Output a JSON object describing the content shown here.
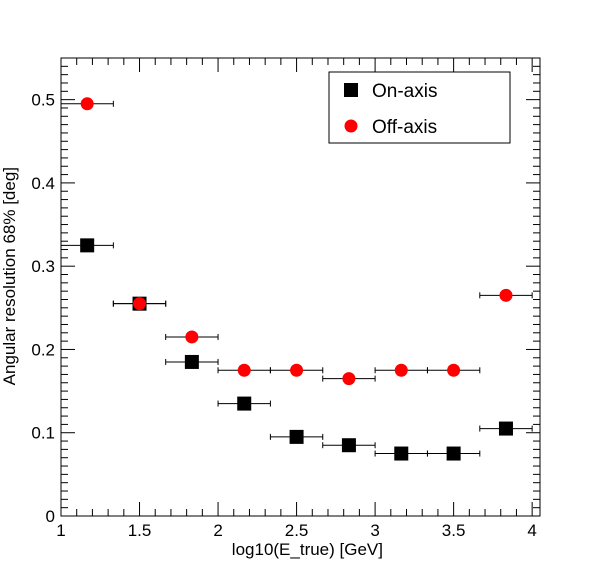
{
  "chart_data": {
    "type": "scatter",
    "title": "",
    "xlabel": "log10(E_true) [GeV]",
    "ylabel": "Angular resolution 68% [deg]",
    "xlim": [
      1,
      4.05
    ],
    "ylim": [
      0,
      0.55
    ],
    "x_ticks": [
      "1",
      "1.5",
      "2",
      "2.5",
      "3",
      "3.5",
      "4"
    ],
    "y_ticks": [
      "0",
      "0.1",
      "0.2",
      "0.3",
      "0.4",
      "0.5"
    ],
    "x_bin_half_width": 0.1667,
    "legend": {
      "position": "top-right"
    },
    "grid": false,
    "series": [
      {
        "name": "On-axis",
        "marker": "square",
        "color": "#000000",
        "x": [
          1.1667,
          1.5,
          1.8333,
          2.1667,
          2.5,
          2.8333,
          3.1667,
          3.5,
          3.8333
        ],
        "y": [
          0.325,
          0.255,
          0.185,
          0.135,
          0.095,
          0.085,
          0.075,
          0.075,
          0.105
        ]
      },
      {
        "name": "Off-axis",
        "marker": "circle",
        "color": "#ff0000",
        "x": [
          1.1667,
          1.5,
          1.8333,
          2.1667,
          2.5,
          2.8333,
          3.1667,
          3.5,
          3.8333
        ],
        "y": [
          0.495,
          0.255,
          0.215,
          0.175,
          0.175,
          0.165,
          0.175,
          0.175,
          0.265
        ]
      }
    ]
  }
}
